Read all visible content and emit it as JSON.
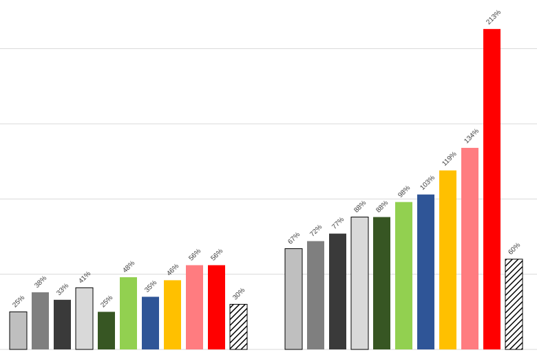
{
  "chart_data": {
    "type": "bar",
    "ylim": [
      0,
      213
    ],
    "grid": true,
    "legend": "none",
    "groups": [
      {
        "bars": [
          {
            "value": 25,
            "label": "25%",
            "color": "#bfbfbf",
            "pattern": "solid",
            "outlined": true
          },
          {
            "value": 38,
            "label": "38%",
            "color": "#7f7f7f",
            "pattern": "solid",
            "outlined": false
          },
          {
            "value": 33,
            "label": "33%",
            "color": "#3a3a3a",
            "pattern": "solid",
            "outlined": false
          },
          {
            "value": 41,
            "label": "41%",
            "color": "#d9d9d9",
            "pattern": "solid",
            "outlined": true
          },
          {
            "value": 25,
            "label": "25%",
            "color": "#375623",
            "pattern": "solid",
            "outlined": false
          },
          {
            "value": 48,
            "label": "48%",
            "color": "#92d050",
            "pattern": "solid",
            "outlined": false
          },
          {
            "value": 35,
            "label": "35%",
            "color": "#2f5597",
            "pattern": "solid",
            "outlined": false
          },
          {
            "value": 46,
            "label": "46%",
            "color": "#ffc000",
            "pattern": "solid",
            "outlined": false
          },
          {
            "value": 56,
            "label": "56%",
            "color": "#ff7c80",
            "pattern": "solid",
            "outlined": false
          },
          {
            "value": 56,
            "label": "56%",
            "color": "#ff0000",
            "pattern": "solid",
            "outlined": false
          },
          {
            "value": 30,
            "label": "30%",
            "color": "#000000",
            "pattern": "hatch",
            "outlined": true
          }
        ]
      },
      {
        "bars": [
          {
            "value": 67,
            "label": "67%",
            "color": "#bfbfbf",
            "pattern": "solid",
            "outlined": true
          },
          {
            "value": 72,
            "label": "72%",
            "color": "#7f7f7f",
            "pattern": "solid",
            "outlined": false
          },
          {
            "value": 77,
            "label": "77%",
            "color": "#3a3a3a",
            "pattern": "solid",
            "outlined": false
          },
          {
            "value": 88,
            "label": "88%",
            "color": "#d9d9d9",
            "pattern": "solid",
            "outlined": true
          },
          {
            "value": 88,
            "label": "88%",
            "color": "#375623",
            "pattern": "solid",
            "outlined": false
          },
          {
            "value": 98,
            "label": "98%",
            "color": "#92d050",
            "pattern": "solid",
            "outlined": false
          },
          {
            "value": 103,
            "label": "103%",
            "color": "#2f5597",
            "pattern": "solid",
            "outlined": false
          },
          {
            "value": 119,
            "label": "119%",
            "color": "#ffc000",
            "pattern": "solid",
            "outlined": false
          },
          {
            "value": 134,
            "label": "134%",
            "color": "#ff7c80",
            "pattern": "solid",
            "outlined": false
          },
          {
            "value": 213,
            "label": "213%",
            "color": "#ff0000",
            "pattern": "solid",
            "outlined": false
          },
          {
            "value": 60,
            "label": "60%",
            "color": "#000000",
            "pattern": "hatch",
            "outlined": true
          }
        ]
      }
    ]
  }
}
